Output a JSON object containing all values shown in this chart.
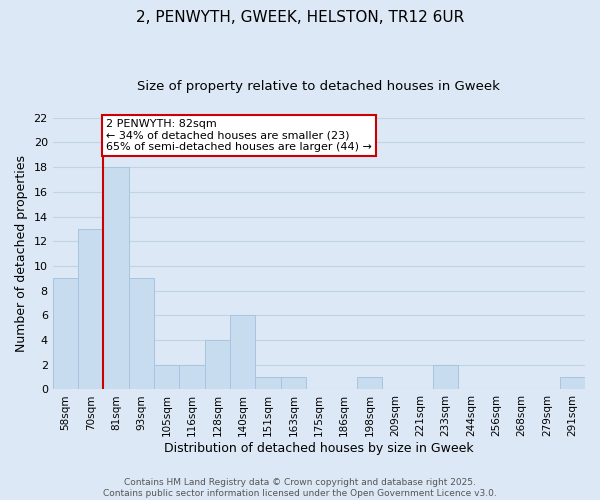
{
  "title1": "2, PENWYTH, GWEEK, HELSTON, TR12 6UR",
  "title2": "Size of property relative to detached houses in Gweek",
  "xlabel": "Distribution of detached houses by size in Gweek",
  "ylabel": "Number of detached properties",
  "bar_labels": [
    "58sqm",
    "70sqm",
    "81sqm",
    "93sqm",
    "105sqm",
    "116sqm",
    "128sqm",
    "140sqm",
    "151sqm",
    "163sqm",
    "175sqm",
    "186sqm",
    "198sqm",
    "209sqm",
    "221sqm",
    "233sqm",
    "244sqm",
    "256sqm",
    "268sqm",
    "279sqm",
    "291sqm"
  ],
  "bar_values": [
    9,
    13,
    18,
    9,
    2,
    2,
    4,
    6,
    1,
    1,
    0,
    0,
    1,
    0,
    0,
    2,
    0,
    0,
    0,
    0,
    1
  ],
  "bar_color": "#c8dcf0",
  "bar_edge_color": "#a8c4de",
  "vline_index": 2,
  "vline_color": "#cc0000",
  "annotation_text": "2 PENWYTH: 82sqm\n← 34% of detached houses are smaller (23)\n65% of semi-detached houses are larger (44) →",
  "annotation_box_edgecolor": "#cc0000",
  "annotation_box_facecolor": "#ffffff",
  "ylim": [
    0,
    22
  ],
  "yticks": [
    0,
    2,
    4,
    6,
    8,
    10,
    12,
    14,
    16,
    18,
    20,
    22
  ],
  "grid_color": "#c0d4e8",
  "background_color": "#dce8f5",
  "footer_text": "Contains HM Land Registry data © Crown copyright and database right 2025.\nContains public sector information licensed under the Open Government Licence v3.0.",
  "title_fontsize": 11,
  "subtitle_fontsize": 9.5,
  "xlabel_fontsize": 9,
  "ylabel_fontsize": 9,
  "annot_fontsize": 8,
  "footer_fontsize": 6.5
}
